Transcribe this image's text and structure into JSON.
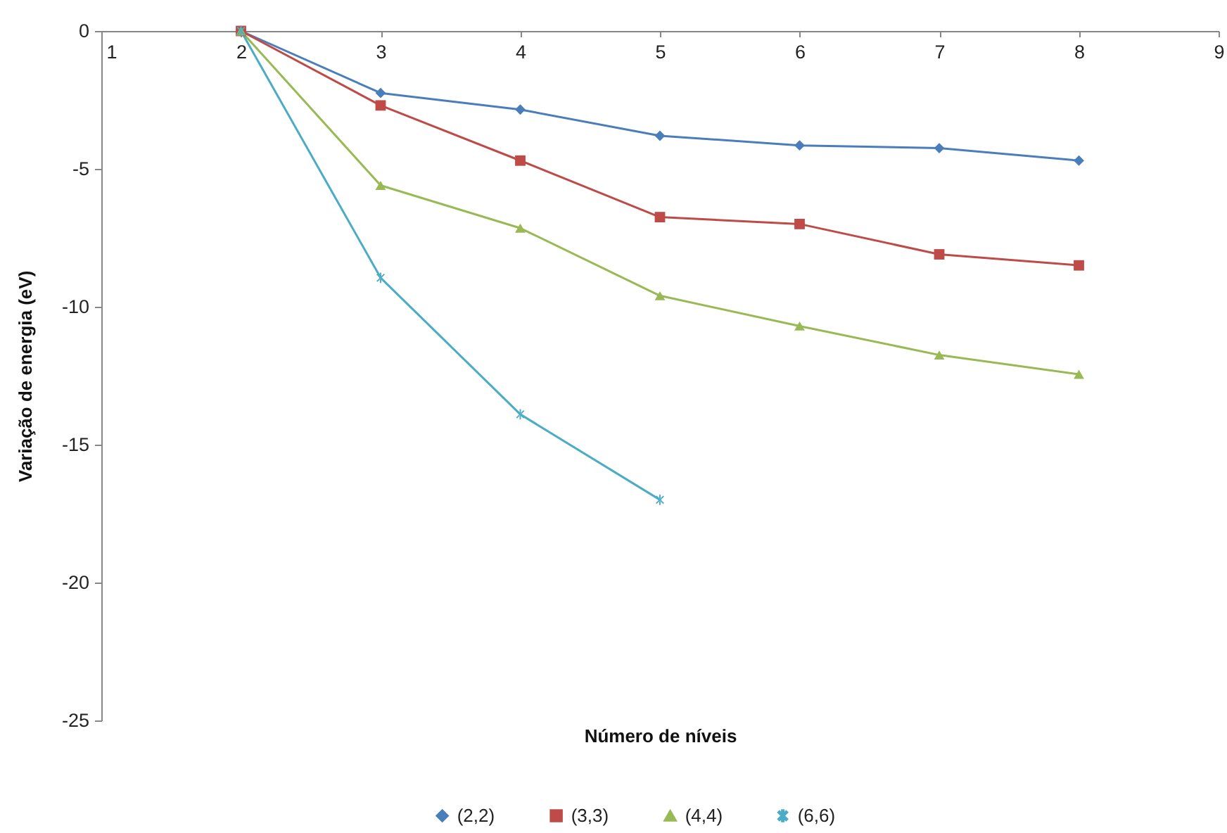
{
  "chart_data": {
    "type": "line",
    "xlabel": "Número de níveis",
    "ylabel": "Variação de energia (eV)",
    "legend": "bottom",
    "x": [
      2,
      3,
      4,
      5,
      6,
      7,
      8
    ],
    "xlim": [
      1,
      9
    ],
    "xticks": [
      1,
      2,
      3,
      4,
      5,
      6,
      7,
      8,
      9
    ],
    "ylim": [
      -25,
      0
    ],
    "yticks": [
      -25,
      -20,
      -15,
      -10,
      -5,
      0
    ],
    "series": [
      {
        "name": "(2,2)",
        "color": "#4a7ebb",
        "marker": "diamond",
        "values": [
          0,
          -2.25,
          -2.85,
          -3.8,
          -4.15,
          -4.25,
          -4.7
        ]
      },
      {
        "name": "(3,3)",
        "color": "#be4b48",
        "marker": "square",
        "values": [
          0,
          -2.7,
          -4.7,
          -6.75,
          -7.0,
          -8.1,
          -8.5
        ]
      },
      {
        "name": "(4,4)",
        "color": "#98b954",
        "marker": "triangle",
        "values": [
          0,
          -5.6,
          -7.15,
          -9.6,
          -10.7,
          -11.75,
          -12.45
        ]
      },
      {
        "name": "(6,6)",
        "color": "#4bacc6",
        "marker": "cross",
        "x": [
          2,
          3,
          4,
          5
        ],
        "values": [
          0,
          -8.95,
          -13.9,
          -17.0
        ]
      }
    ]
  }
}
